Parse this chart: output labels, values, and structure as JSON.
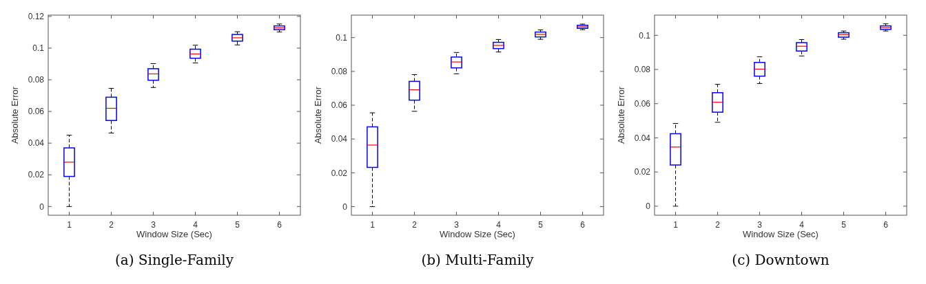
{
  "chart_data": [
    {
      "type": "box",
      "title": "(a) Single-Family",
      "xlabel": "Window Size (Sec)",
      "ylabel": "Absolute Error",
      "categories": [
        "1",
        "2",
        "3",
        "4",
        "5",
        "6"
      ],
      "ylim": [
        -0.0055,
        0.1208
      ],
      "yticks": [
        0,
        0.02,
        0.04,
        0.06,
        0.08,
        0.1,
        0.12
      ],
      "grid": false,
      "series": [
        {
          "color": "#0000ff",
          "boxes": [
            {
              "low": 0,
              "q1": 0.019,
              "median": 0.028,
              "q3": 0.037,
              "high": 0.045
            },
            {
              "low": 0.0464,
              "q1": 0.0543,
              "median": 0.062,
              "q3": 0.069,
              "high": 0.0746
            },
            {
              "low": 0.0751,
              "q1": 0.0797,
              "median": 0.0837,
              "q3": 0.087,
              "high": 0.0902
            },
            {
              "low": 0.0906,
              "q1": 0.0936,
              "median": 0.0963,
              "q3": 0.0993,
              "high": 0.1018
            },
            {
              "low": 0.102,
              "q1": 0.1044,
              "median": 0.1065,
              "q3": 0.1086,
              "high": 0.1103
            },
            {
              "low": 0.1102,
              "q1": 0.1116,
              "median": 0.1128,
              "q3": 0.114,
              "high": 0.1152
            }
          ]
        }
      ]
    },
    {
      "type": "box",
      "title": "(b) Multi-Family",
      "xlabel": "Window Size (Sec)",
      "ylabel": "Absolute Error",
      "categories": [
        "1",
        "2",
        "3",
        "4",
        "5",
        "6"
      ],
      "ylim": [
        -0.0051,
        0.1133
      ],
      "yticks": [
        0,
        0.02,
        0.04,
        0.06,
        0.08,
        0.1
      ],
      "grid": false,
      "series": [
        {
          "color": "#0000ff",
          "boxes": [
            {
              "low": 0,
              "q1": 0.0232,
              "median": 0.0364,
              "q3": 0.0472,
              "high": 0.0555
            },
            {
              "low": 0.0564,
              "q1": 0.063,
              "median": 0.0691,
              "q3": 0.0741,
              "high": 0.0781
            },
            {
              "low": 0.0786,
              "q1": 0.0821,
              "median": 0.0856,
              "q3": 0.0885,
              "high": 0.0912
            },
            {
              "low": 0.0915,
              "q1": 0.0935,
              "median": 0.0954,
              "q3": 0.0972,
              "high": 0.0989
            },
            {
              "low": 0.099,
              "q1": 0.1004,
              "median": 0.1019,
              "q3": 0.1033,
              "high": 0.1046
            },
            {
              "low": 0.1047,
              "q1": 0.1055,
              "median": 0.1064,
              "q3": 0.1073,
              "high": 0.108
            }
          ]
        }
      ]
    },
    {
      "type": "box",
      "title": "(c) Downtown",
      "xlabel": "Window Size (Sec)",
      "ylabel": "Absolute Error",
      "categories": [
        "1",
        "2",
        "3",
        "4",
        "5",
        "6"
      ],
      "ylim": [
        -0.0053,
        0.1118
      ],
      "yticks": [
        0,
        0.02,
        0.04,
        0.06,
        0.08,
        0.1
      ],
      "grid": false,
      "series": [
        {
          "color": "#0000ff",
          "boxes": [
            {
              "low": 0,
              "q1": 0.0241,
              "median": 0.0346,
              "q3": 0.0424,
              "high": 0.0484
            },
            {
              "low": 0.0491,
              "q1": 0.055,
              "median": 0.0608,
              "q3": 0.0664,
              "high": 0.0713
            },
            {
              "low": 0.0718,
              "q1": 0.0761,
              "median": 0.0802,
              "q3": 0.0841,
              "high": 0.0874
            },
            {
              "low": 0.0879,
              "q1": 0.0908,
              "median": 0.0936,
              "q3": 0.0957,
              "high": 0.0975
            },
            {
              "low": 0.0977,
              "q1": 0.0989,
              "median": 0.1004,
              "q3": 0.1015,
              "high": 0.1025
            },
            {
              "low": 0.1025,
              "q1": 0.1034,
              "median": 0.1045,
              "q3": 0.1055,
              "high": 0.1067
            }
          ]
        }
      ]
    }
  ]
}
